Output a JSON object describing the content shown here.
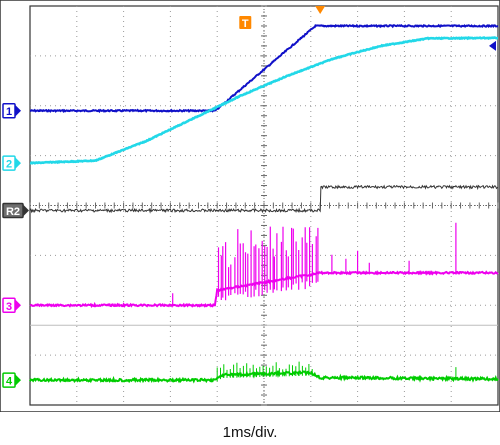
{
  "caption": "1ms/div.",
  "chart_data": {
    "type": "line",
    "title": "",
    "xlabel": "",
    "ylabel": "",
    "time_per_division": "1ms/div.",
    "x_divisions": 10,
    "y_divisions": 8,
    "xlim": [
      0,
      10
    ],
    "ylim": [
      0,
      8
    ],
    "grid": true,
    "markers": {
      "trigger_label": "T",
      "trigger_x": 4.6,
      "t0_x": 6.2
    },
    "colors": {
      "ch1": "#1010c8",
      "ch2": "#22d8e8",
      "ch3": "#ee00ee",
      "ch4": "#00cc00",
      "ref": "#333333",
      "trigger": "#ff8800",
      "ref_marker": "#6e6e6e"
    },
    "series": [
      {
        "label": "1",
        "points": [
          [
            0,
            5.9
          ],
          [
            3.96,
            5.9
          ],
          [
            6.1,
            7.6
          ],
          [
            10,
            7.6
          ]
        ]
      },
      {
        "label": "2",
        "points": [
          [
            0,
            4.85
          ],
          [
            1.4,
            4.9
          ],
          [
            2.5,
            5.3
          ],
          [
            3.5,
            5.75
          ],
          [
            4.5,
            6.2
          ],
          [
            5.5,
            6.6
          ],
          [
            6.5,
            6.95
          ],
          [
            7.5,
            7.2
          ],
          [
            8.5,
            7.35
          ],
          [
            10,
            7.36
          ]
        ]
      },
      {
        "label": "R2",
        "points": [
          [
            0,
            3.9
          ],
          [
            6.2,
            3.9
          ],
          [
            6.2,
            4.37
          ],
          [
            10,
            4.37
          ]
        ]
      },
      {
        "label": "3",
        "points": [
          [
            0,
            2.0
          ],
          [
            3.95,
            2.0
          ],
          [
            4.0,
            2.3
          ],
          [
            6.2,
            2.65
          ],
          [
            10,
            2.65
          ]
        ]
      },
      {
        "label": "4",
        "points": [
          [
            0,
            0.5
          ],
          [
            3.95,
            0.5
          ],
          [
            4.1,
            0.6
          ],
          [
            6.0,
            0.65
          ],
          [
            6.2,
            0.55
          ],
          [
            10,
            0.52
          ]
        ]
      }
    ]
  }
}
